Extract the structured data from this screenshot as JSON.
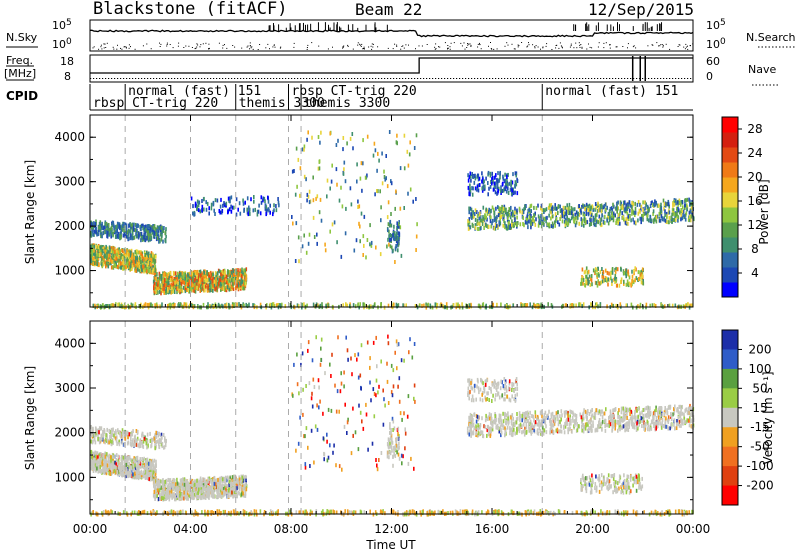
{
  "header": {
    "station": "Blackstone (fitACF)",
    "beam": "Beam 22",
    "date": "12/Sep/2015"
  },
  "labels": {
    "nsky": "N.Sky",
    "freq_line1": "Freq.",
    "freq_line2": "[MHz]",
    "cpid": "CPID",
    "nsearch": "N.Search",
    "nave": "Nave",
    "slant_range": "Slant Range [km]",
    "time_ut": "Time UT",
    "power_label": "Power [dB]",
    "velocity_label": "Velocity [m s⁻¹]"
  },
  "top_panels": {
    "noise_left_ticks": [
      "10^5",
      "10^0"
    ],
    "noise_right_ticks": [
      "10^5",
      "10^0"
    ],
    "freq_left_ticks": [
      "18",
      "8"
    ],
    "nave_right_ticks": [
      "60",
      "0"
    ]
  },
  "cpid_segments": [
    {
      "text": "rbsp CT-trig 220",
      "start_hour": 0.0,
      "row": 2
    },
    {
      "text": "normal (fast) 151",
      "start_hour": 1.4,
      "row": 1
    },
    {
      "text": "themis 3300",
      "start_hour": 5.8,
      "row": 2
    },
    {
      "text": "rbsp CT-trig 220",
      "start_hour": 7.9,
      "row": 1
    },
    {
      "text": "themis 3300",
      "start_hour": 8.4,
      "row": 2
    },
    {
      "text": "normal (fast) 151",
      "start_hour": 18.0,
      "row": 1
    }
  ],
  "colors": {
    "power_scale": [
      "#0000ff",
      "#1c48b4",
      "#2e6aa8",
      "#3f8f6e",
      "#5aa04c",
      "#8ec640",
      "#e8d43a",
      "#f5a71d",
      "#f07a16",
      "#e34a14",
      "#d42010",
      "#ff0000"
    ],
    "velocity_scale": [
      "#1c2ea8",
      "#2f5cc8",
      "#5aa040",
      "#9acd45",
      "#c8c8c0",
      "#f0a020",
      "#f07020",
      "#e04010",
      "#ff0000"
    ]
  },
  "chart_data": [
    {
      "type": "heatmap",
      "title": "Power",
      "ylabel": "Slant Range [km]",
      "xlabel": "",
      "ylim": [
        180,
        4500
      ],
      "xlim_hours": [
        0,
        24
      ],
      "y_ticks": [
        "1000",
        "2000",
        "3000",
        "4000"
      ],
      "colorbar_label": "Power [dB]",
      "colorbar_ticks": [
        "4",
        "8",
        "12",
        "16",
        "20",
        "24",
        "28"
      ],
      "colorbar_range": [
        0,
        30
      ]
    },
    {
      "type": "heatmap",
      "title": "Velocity",
      "ylabel": "Slant Range [km]",
      "xlabel": "Time UT",
      "ylim": [
        180,
        4500
      ],
      "xlim_hours": [
        0,
        24
      ],
      "y_ticks": [
        "1000",
        "2000",
        "3000",
        "4000"
      ],
      "x_ticks": [
        "00:00",
        "04:00",
        "08:00",
        "12:00",
        "16:00",
        "20:00",
        "00:00"
      ],
      "colorbar_label": "Velocity [m s⁻¹]",
      "colorbar_ticks": [
        "200",
        "100",
        "50",
        "15",
        "-15",
        "-50",
        "-100",
        "-200"
      ],
      "colorbar_range": [
        -250,
        250
      ]
    }
  ]
}
